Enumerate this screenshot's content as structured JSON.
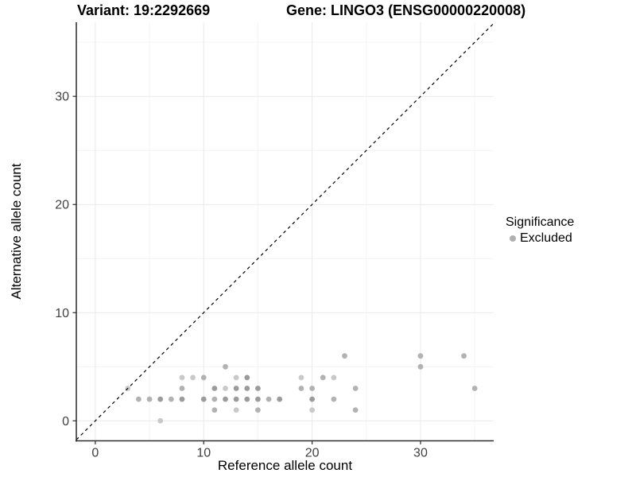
{
  "titles": {
    "variant": "Variant: 19:2292669",
    "gene": "Gene: LINGO3 (ENSG00000220008)"
  },
  "legend": {
    "title": "Significance",
    "items": [
      {
        "label": "Excluded",
        "color": "#b0b0b0"
      }
    ]
  },
  "colors": {
    "point_light": "#c9c9c9",
    "point_medium": "#b2b2b2",
    "point_dark": "#9b9b9b",
    "grid_major": "#e9e9e9",
    "grid_minor": "#f4f4f4",
    "axis_line": "#2b2b2b",
    "tick_text": "#404040",
    "identity_line": "#000000"
  },
  "chart_data": {
    "type": "scatter",
    "title_left": "Variant: 19:2292669",
    "title_right": "Gene: LINGO3 (ENSG00000220008)",
    "xlabel": "Reference allele count",
    "ylabel": "Alternative allele count",
    "xlim": [
      -1.75,
      36.75
    ],
    "ylim": [
      -1.85,
      36.85
    ],
    "x_ticks": [
      0,
      10,
      20,
      30
    ],
    "y_ticks": [
      0,
      10,
      20,
      30
    ],
    "x_minor_gridlines": [
      5,
      15,
      25,
      35
    ],
    "y_minor_gridlines": [
      5,
      15,
      25,
      35
    ],
    "grid": "major and minor, light gray on white",
    "legend_position": "right, vertically centered",
    "identity_line": "dashed black y = x from panel corner to corner",
    "series_name": "Excluded",
    "points": [
      {
        "x": 3,
        "y": 3,
        "s": 0
      },
      {
        "x": 4,
        "y": 2,
        "s": 1
      },
      {
        "x": 5,
        "y": 2,
        "s": 1
      },
      {
        "x": 6,
        "y": 0,
        "s": 0
      },
      {
        "x": 6,
        "y": 2,
        "s": 2
      },
      {
        "x": 7,
        "y": 2,
        "s": 1
      },
      {
        "x": 8,
        "y": 2,
        "s": 2
      },
      {
        "x": 8,
        "y": 3,
        "s": 1
      },
      {
        "x": 8,
        "y": 4,
        "s": 0
      },
      {
        "x": 9,
        "y": 4,
        "s": 0
      },
      {
        "x": 10,
        "y": 2,
        "s": 2
      },
      {
        "x": 10,
        "y": 4,
        "s": 1
      },
      {
        "x": 11,
        "y": 1,
        "s": 1
      },
      {
        "x": 11,
        "y": 2,
        "s": 1
      },
      {
        "x": 11,
        "y": 3,
        "s": 2
      },
      {
        "x": 12,
        "y": 2,
        "s": 2
      },
      {
        "x": 12,
        "y": 3,
        "s": 0
      },
      {
        "x": 12,
        "y": 5,
        "s": 1
      },
      {
        "x": 13,
        "y": 1,
        "s": 0
      },
      {
        "x": 13,
        "y": 2,
        "s": 2
      },
      {
        "x": 13,
        "y": 3,
        "s": 2
      },
      {
        "x": 13,
        "y": 4,
        "s": 0
      },
      {
        "x": 14,
        "y": 2,
        "s": 2
      },
      {
        "x": 14,
        "y": 3,
        "s": 2
      },
      {
        "x": 14,
        "y": 4,
        "s": 2
      },
      {
        "x": 15,
        "y": 1,
        "s": 1
      },
      {
        "x": 15,
        "y": 2,
        "s": 2
      },
      {
        "x": 15,
        "y": 3,
        "s": 2
      },
      {
        "x": 16,
        "y": 2,
        "s": 1
      },
      {
        "x": 17,
        "y": 2,
        "s": 2
      },
      {
        "x": 19,
        "y": 3,
        "s": 1
      },
      {
        "x": 19,
        "y": 4,
        "s": 0
      },
      {
        "x": 20,
        "y": 1,
        "s": 0
      },
      {
        "x": 20,
        "y": 2,
        "s": 2
      },
      {
        "x": 20,
        "y": 3,
        "s": 1
      },
      {
        "x": 21,
        "y": 4,
        "s": 1
      },
      {
        "x": 22,
        "y": 2,
        "s": 1
      },
      {
        "x": 22,
        "y": 4,
        "s": 0
      },
      {
        "x": 23,
        "y": 6,
        "s": 1
      },
      {
        "x": 24,
        "y": 1,
        "s": 1
      },
      {
        "x": 24,
        "y": 3,
        "s": 1
      },
      {
        "x": 30,
        "y": 5,
        "s": 1
      },
      {
        "x": 30,
        "y": 6,
        "s": 1
      },
      {
        "x": 34,
        "y": 6,
        "s": 1
      },
      {
        "x": 35,
        "y": 3,
        "s": 1
      }
    ]
  }
}
